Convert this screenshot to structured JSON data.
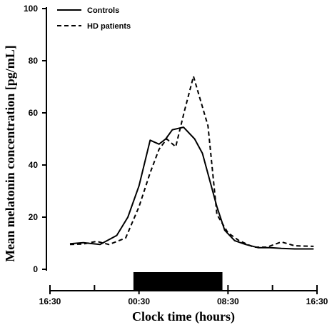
{
  "chart_data": {
    "type": "line",
    "title": "",
    "xlabel": "Clock time (hours)",
    "ylabel": "Mean melatonin concentration [pg/mL]",
    "ylim": [
      0,
      100
    ],
    "yticks": [
      0,
      20,
      40,
      60,
      80,
      100
    ],
    "xlim_hours": [
      0,
      24
    ],
    "xticks": [
      {
        "hour": 0,
        "label": "16:30"
      },
      {
        "hour": 8,
        "label": "00:30"
      },
      {
        "hour": 16,
        "label": "08:30"
      },
      {
        "hour": 24,
        "label": "16:30"
      }
    ],
    "minor_xticks_hours": [
      0,
      4,
      8,
      12,
      16,
      20,
      24
    ],
    "legend_position": "top-left",
    "series": [
      {
        "name": "Controls",
        "style": "solid",
        "color": "#000000",
        "x": [
          1.8,
          3.0,
          4.5,
          6.0,
          7.0,
          8.0,
          9.0,
          9.8,
          10.4,
          11.0,
          12.0,
          13.0,
          13.7,
          15.0,
          15.7,
          16.6,
          17.6,
          18.7,
          19.8,
          20.8,
          22.0,
          23.7
        ],
        "y": [
          9.8,
          10.2,
          9.5,
          13.0,
          20.0,
          32.0,
          49.5,
          48.0,
          50.0,
          53.5,
          54.5,
          50.0,
          44.5,
          24.0,
          15.0,
          11.0,
          9.5,
          8.3,
          8.3,
          8.0,
          7.8,
          7.8
        ]
      },
      {
        "name": "HD patients",
        "style": "dashed",
        "color": "#000000",
        "x": [
          1.8,
          3.0,
          4.2,
          5.3,
          6.8,
          8.0,
          9.0,
          9.8,
          10.5,
          11.3,
          12.1,
          12.9,
          14.2,
          15.0,
          16.0,
          17.0,
          18.3,
          19.5,
          20.8,
          22.0,
          23.7
        ],
        "y": [
          9.5,
          9.7,
          10.7,
          9.5,
          12.0,
          24.0,
          37.0,
          46.0,
          50.0,
          47.0,
          61.0,
          74.0,
          55.0,
          21.0,
          14.0,
          11.0,
          8.5,
          8.5,
          10.5,
          9.0,
          8.8
        ]
      }
    ],
    "annotations": [
      {
        "type": "dark-period-bar",
        "start_hour": 7.5,
        "end_hour": 15.5
      }
    ]
  }
}
